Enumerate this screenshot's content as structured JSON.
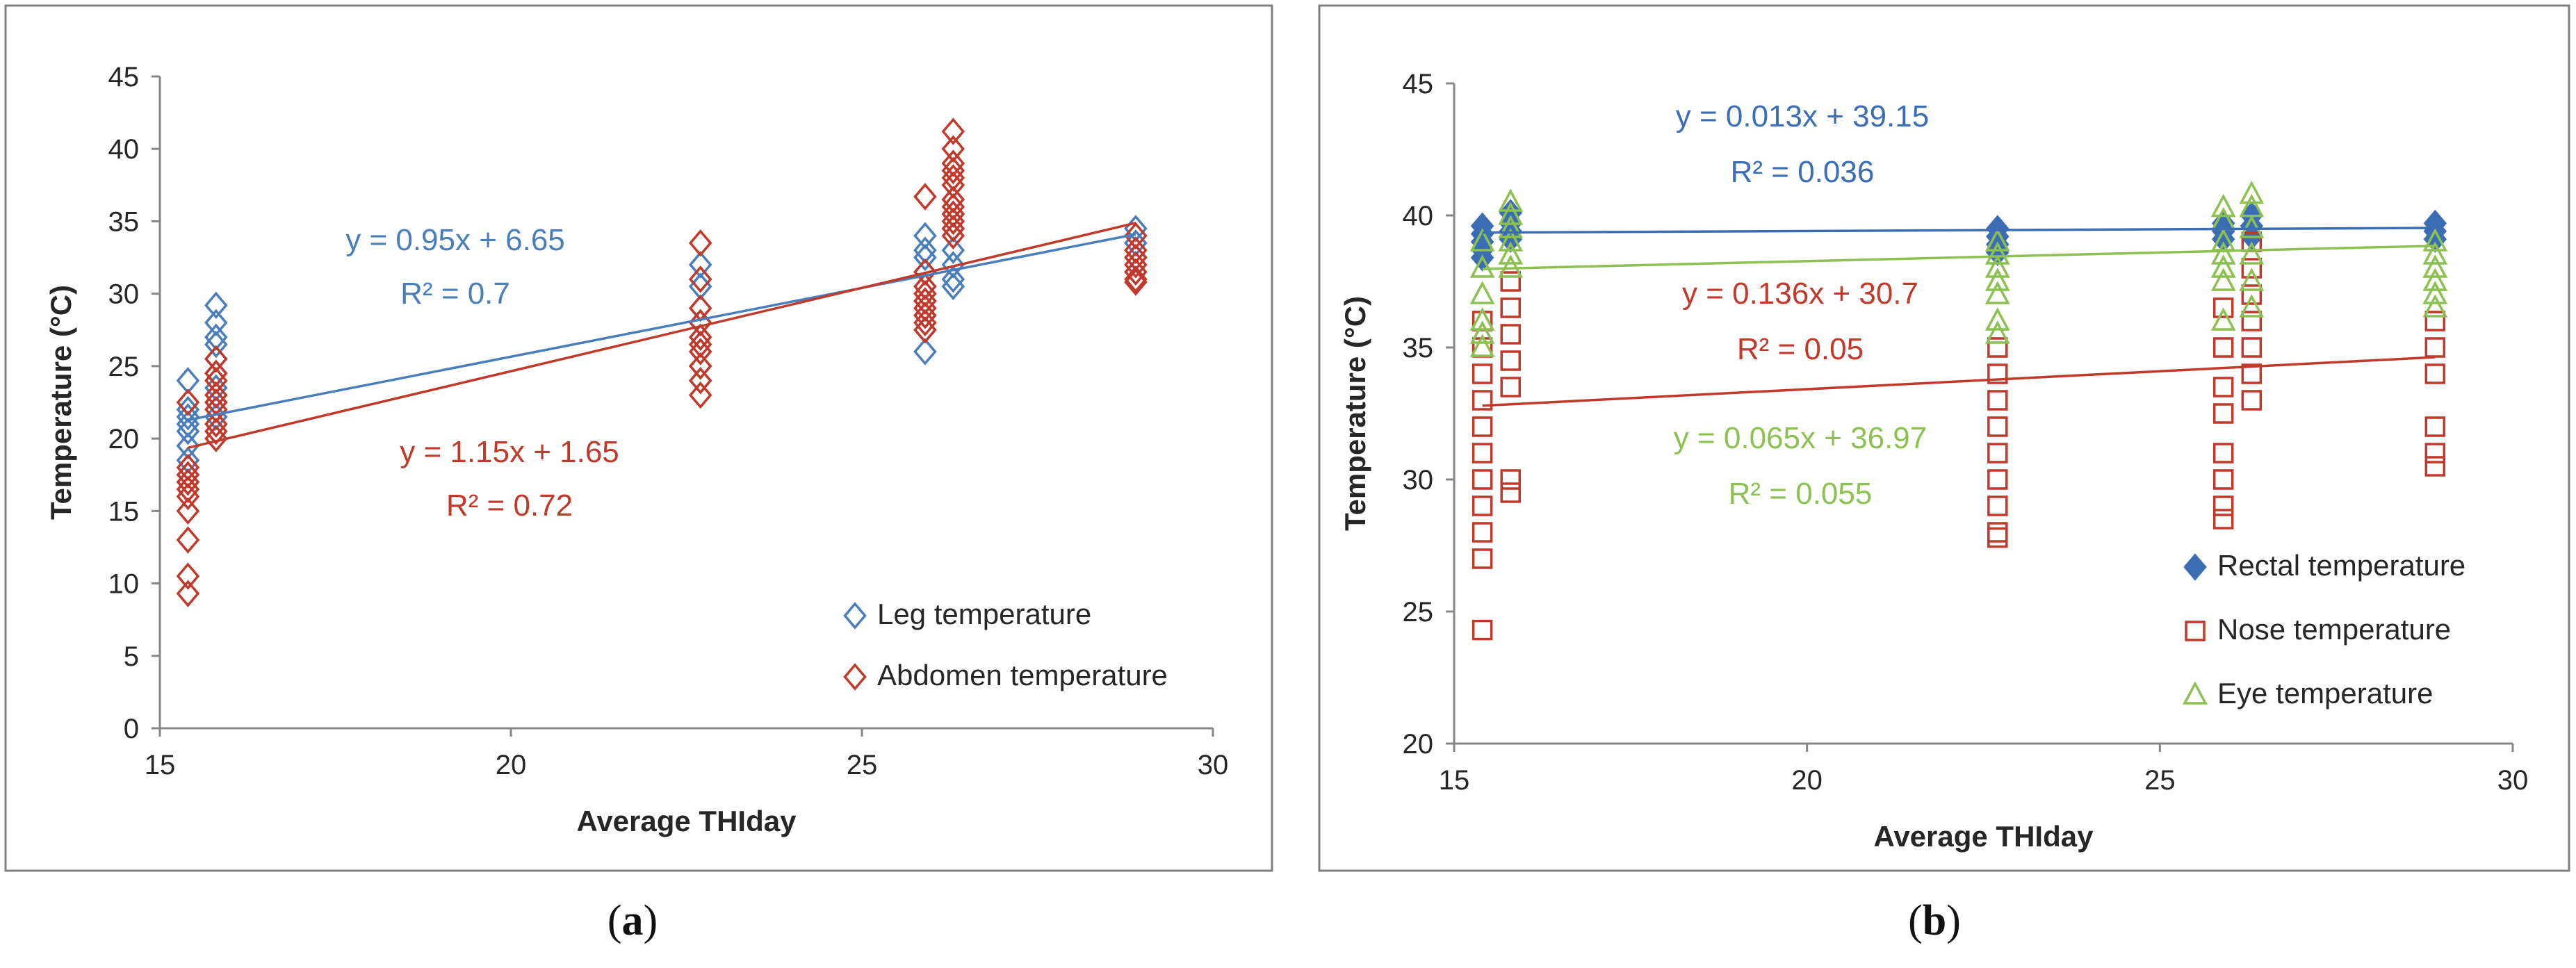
{
  "panel_labels": [
    {
      "prefix": "(",
      "letter": "a",
      "suffix": ")"
    },
    {
      "prefix": "(",
      "letter": "b",
      "suffix": ")"
    }
  ],
  "chart_data": [
    {
      "type": "scatter",
      "xlabel": "Average THIday",
      "ylabel": "Temperature (°C)",
      "xlim": [
        15,
        30
      ],
      "ylim": [
        0,
        45
      ],
      "x_ticks": [
        15,
        20,
        25,
        30
      ],
      "y_ticks": [
        0,
        5,
        10,
        15,
        20,
        25,
        30,
        35,
        40,
        45
      ],
      "legend_position": "bottom-right",
      "series": [
        {
          "name": "Leg temperature",
          "marker": "diamond-open",
          "color": "#4a7ebb",
          "trendline": {
            "slope": 0.95,
            "intercept": 6.65,
            "x_range": [
              15.4,
              28.9
            ]
          },
          "equation": "y = 0.95x + 6.65",
          "r2": "R² = 0.7",
          "points": [
            {
              "x": 15.4,
              "y": [
                24.0,
                22.0,
                21.5,
                21.0,
                20.5,
                19.5,
                18.5,
                17.5,
                17.0
              ]
            },
            {
              "x": 15.8,
              "y": [
                29.2,
                28.0,
                27.0,
                26.5,
                25.5,
                24.5,
                23.5,
                22.5,
                21.5
              ]
            },
            {
              "x": 22.7,
              "y": [
                32.0,
                30.5,
                29.0,
                28.0,
                27.0,
                26.0,
                25.0,
                24.0
              ]
            },
            {
              "x": 25.9,
              "y": [
                34.0,
                33.0,
                32.5,
                31.5,
                30.5,
                29.5,
                28.5,
                27.5,
                26.0
              ]
            },
            {
              "x": 26.3,
              "y": [
                36.5,
                35.5,
                34.5,
                33.0,
                32.0,
                31.0,
                30.5
              ]
            },
            {
              "x": 28.9,
              "y": [
                34.5,
                33.5,
                32.5,
                31.5
              ]
            }
          ]
        },
        {
          "name": "Abdomen temperature",
          "marker": "diamond-open",
          "color": "#c0392b",
          "trendline": {
            "slope": 1.15,
            "intercept": 1.65,
            "x_range": [
              15.4,
              28.9
            ]
          },
          "equation": "y = 1.15x + 1.65",
          "r2": "R² = 0.72",
          "points": [
            {
              "x": 15.4,
              "y": [
                22.5,
                18.0,
                17.5,
                17.0,
                16.5,
                16.0,
                15.0,
                13.0,
                10.5,
                9.3
              ]
            },
            {
              "x": 15.8,
              "y": [
                25.5,
                24.5,
                24.0,
                23.0,
                22.5,
                22.0,
                21.0,
                20.5,
                20.0
              ]
            },
            {
              "x": 22.7,
              "y": [
                33.5,
                31.0,
                29.0,
                28.0,
                27.0,
                26.5,
                26.0,
                25.0,
                24.0,
                23.0
              ]
            },
            {
              "x": 25.9,
              "y": [
                36.7,
                31.5,
                30.5,
                30.0,
                29.5,
                29.0,
                28.5,
                28.0,
                27.5
              ]
            },
            {
              "x": 26.3,
              "y": [
                41.2,
                40.0,
                39.0,
                38.5,
                38.0,
                37.5,
                36.5,
                36.0,
                35.5,
                35.0,
                34.5,
                34.0
              ]
            },
            {
              "x": 28.9,
              "y": [
                34.0,
                33.0,
                32.5,
                32.0,
                31.5,
                31.0,
                30.8
              ]
            }
          ]
        }
      ]
    },
    {
      "type": "scatter",
      "xlabel": "Average THIday",
      "ylabel": "Temperature (°C)",
      "xlim": [
        15,
        30
      ],
      "ylim": [
        20,
        45
      ],
      "x_ticks": [
        15,
        20,
        25,
        30
      ],
      "y_ticks": [
        20,
        25,
        30,
        35,
        40,
        45
      ],
      "legend_position": "bottom-right",
      "series": [
        {
          "name": "Rectal temperature",
          "marker": "diamond-filled",
          "color": "#3b6db5",
          "trendline": {
            "slope": 0.013,
            "intercept": 39.15,
            "x_range": [
              15.4,
              28.9
            ]
          },
          "equation": "y = 0.013x + 39.15",
          "r2": "R² = 0.036",
          "points": [
            {
              "x": 15.4,
              "y": [
                39.6,
                39.3,
                39.0,
                38.7,
                38.4
              ]
            },
            {
              "x": 15.8,
              "y": [
                40.1,
                39.7,
                39.4,
                39.1
              ]
            },
            {
              "x": 22.7,
              "y": [
                39.5,
                39.2,
                38.9,
                38.6
              ]
            },
            {
              "x": 25.9,
              "y": [
                39.7,
                39.4,
                39.1
              ]
            },
            {
              "x": 26.3,
              "y": [
                40.0,
                39.6,
                39.2
              ]
            },
            {
              "x": 28.9,
              "y": [
                39.7,
                39.4,
                39.1
              ]
            }
          ]
        },
        {
          "name": "Nose temperature",
          "marker": "square-open",
          "color": "#c0392b",
          "trendline": {
            "slope": 0.136,
            "intercept": 30.7,
            "x_range": [
              15.4,
              28.9
            ]
          },
          "equation": "y = 0.136x + 30.7",
          "r2": "R² = 0.05",
          "points": [
            {
              "x": 15.4,
              "y": [
                36.0,
                35.0,
                34.0,
                33.0,
                32.0,
                31.0,
                30.0,
                29.0,
                28.0,
                27.0,
                24.3
              ]
            },
            {
              "x": 15.8,
              "y": [
                37.5,
                36.5,
                35.5,
                34.5,
                33.5,
                30.0,
                29.5
              ]
            },
            {
              "x": 22.7,
              "y": [
                35.0,
                34.0,
                33.0,
                32.0,
                31.0,
                30.0,
                29.0,
                28.0,
                27.8
              ]
            },
            {
              "x": 25.9,
              "y": [
                36.5,
                35.0,
                33.5,
                32.5,
                31.0,
                30.0,
                29.0,
                28.5
              ]
            },
            {
              "x": 26.3,
              "y": [
                39.0,
                38.0,
                37.0,
                36.0,
                35.0,
                34.0,
                33.0
              ]
            },
            {
              "x": 28.9,
              "y": [
                36.0,
                35.0,
                34.0,
                32.0,
                31.0,
                30.5
              ]
            }
          ]
        },
        {
          "name": "Eye temperature",
          "marker": "triangle-open",
          "color": "#8cc152",
          "trendline": {
            "slope": 0.065,
            "intercept": 36.97,
            "x_range": [
              15.4,
              28.9
            ]
          },
          "equation": "y = 0.065x + 36.97",
          "r2": "R² = 0.055",
          "points": [
            {
              "x": 15.4,
              "y": [
                39.0,
                38.0,
                37.0,
                36.0,
                35.5,
                35.0
              ]
            },
            {
              "x": 15.8,
              "y": [
                40.5,
                40.0,
                39.5,
                39.0,
                38.5,
                38.0
              ]
            },
            {
              "x": 22.7,
              "y": [
                39.0,
                38.5,
                38.0,
                37.5,
                37.0,
                36.0,
                35.5
              ]
            },
            {
              "x": 25.9,
              "y": [
                40.3,
                39.8,
                39.0,
                38.5,
                38.0,
                37.5,
                36.0
              ]
            },
            {
              "x": 26.3,
              "y": [
                40.8,
                40.3,
                39.5,
                38.5,
                37.5,
                36.5
              ]
            },
            {
              "x": 28.9,
              "y": [
                39.0,
                38.5,
                38.0,
                37.5,
                37.0,
                36.5
              ]
            }
          ]
        }
      ]
    }
  ]
}
